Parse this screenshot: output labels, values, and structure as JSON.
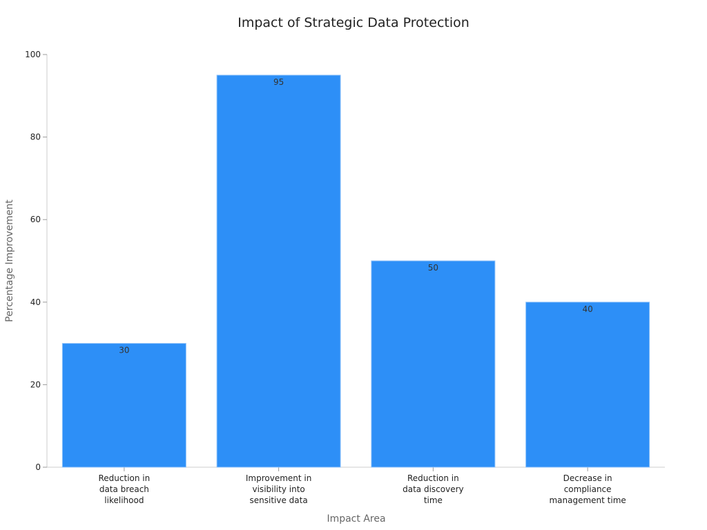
{
  "chart_data": {
    "type": "bar",
    "title": "Impact of Strategic Data Protection",
    "xlabel": "Impact Area",
    "ylabel": "Percentage Improvement",
    "categories": [
      [
        "Reduction in",
        "data breach",
        "likelihood"
      ],
      [
        "Improvement in",
        "visibility into",
        "sensitive data"
      ],
      [
        "Reduction in",
        "data discovery",
        "time"
      ],
      [
        "Decrease in",
        "compliance",
        "management time"
      ]
    ],
    "values": [
      30,
      95,
      50,
      40
    ],
    "data_labels": [
      "30",
      "95",
      "50",
      "40"
    ],
    "ylim": [
      0,
      100
    ],
    "yticks": [
      0,
      20,
      40,
      60,
      80,
      100
    ],
    "grid": false,
    "legend": "none",
    "bar_color": "#2d8ff7"
  }
}
